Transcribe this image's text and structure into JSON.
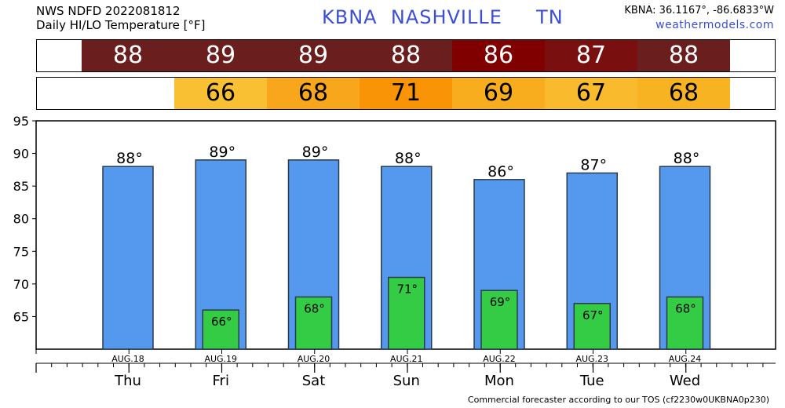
{
  "header": {
    "line1": "NWS NDFD 2022081812",
    "line2": "Daily HI/LO Temperature [°F]",
    "station_title": "KBNA  NASHVILLE     TN",
    "coords": "KBNA: 36.1167°, -86.6833°W",
    "site": "weathermodels.com"
  },
  "hi_strip": [
    {
      "value": "88",
      "color": "#6b1e1e"
    },
    {
      "value": "89",
      "color": "#6b1e1e"
    },
    {
      "value": "89",
      "color": "#6b1e1e"
    },
    {
      "value": "88",
      "color": "#6b1e1e"
    },
    {
      "value": "86",
      "color": "#800000"
    },
    {
      "value": "87",
      "color": "#7a0f0f"
    },
    {
      "value": "88",
      "color": "#6b1e1e"
    }
  ],
  "lo_strip": [
    {
      "value": "66",
      "color": "#f9c033"
    },
    {
      "value": "68",
      "color": "#f8a61b"
    },
    {
      "value": "71",
      "color": "#f89406"
    },
    {
      "value": "69",
      "color": "#f8ad1f"
    },
    {
      "value": "67",
      "color": "#f9bb2d"
    },
    {
      "value": "68",
      "color": "#f8b322"
    }
  ],
  "chart_data": {
    "type": "bar",
    "ylim": [
      60,
      95
    ],
    "yticks": [
      65,
      70,
      75,
      80,
      85,
      90,
      95
    ],
    "dates": [
      "AUG.18",
      "AUG.19",
      "AUG.20",
      "AUG.21",
      "AUG.22",
      "AUG.23",
      "AUG.24"
    ],
    "days": [
      "Thu",
      "Fri",
      "Sat",
      "Sun",
      "Mon",
      "Tue",
      "Wed"
    ],
    "series": [
      {
        "values": [
          88,
          89,
          89,
          88,
          86,
          87,
          88
        ],
        "color": "#5599ee"
      },
      {
        "values": [
          null,
          66,
          68,
          71,
          69,
          67,
          68
        ],
        "color": "#33cc44"
      }
    ],
    "hi_labels": [
      "88°",
      "89°",
      "89°",
      "88°",
      "86°",
      "87°",
      "88°"
    ],
    "lo_labels": [
      "",
      "66°",
      "68°",
      "71°",
      "69°",
      "67°",
      "68°"
    ]
  },
  "footer": "Commercial forecaster according to our TOS (cf2230w0UKBNA0p230)"
}
